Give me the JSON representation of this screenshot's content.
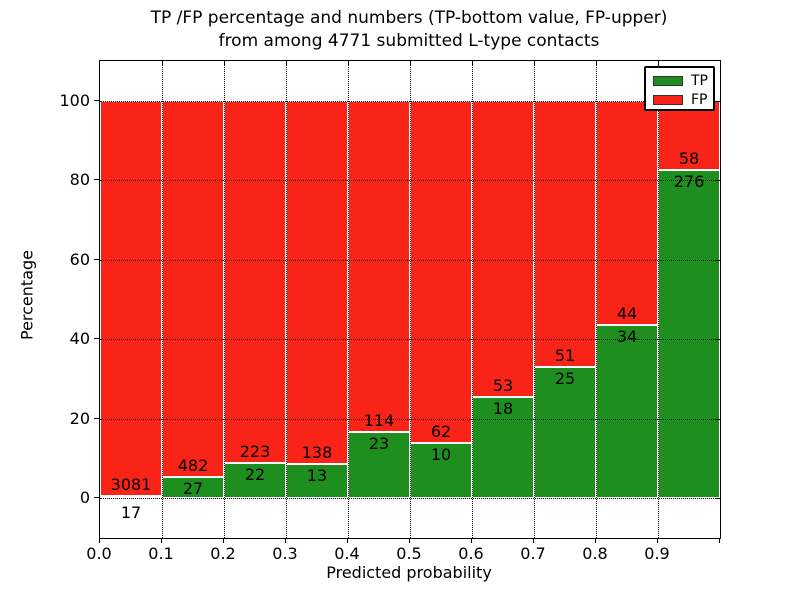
{
  "chart_data": {
    "type": "bar",
    "stacked": true,
    "normalized_to_percent": true,
    "title_lines": [
      "TP /FP percentage and numbers (TP-bottom value, FP-upper)",
      "from among 4771 submitted L-type contacts"
    ],
    "xlabel": "Predicted probability",
    "ylabel": "Percentage",
    "x_tick_labels": [
      "0.0",
      "0.1",
      "0.2",
      "0.3",
      "0.4",
      "0.5",
      "0.6",
      "0.7",
      "0.8",
      "0.9"
    ],
    "y_tick_labels": [
      "0",
      "20",
      "40",
      "60",
      "80",
      "100"
    ],
    "y_ticks": [
      0,
      20,
      40,
      60,
      80,
      100
    ],
    "xlim": [
      0.0,
      1.0
    ],
    "ylim": [
      -10,
      110
    ],
    "grid": "dotted, both axes",
    "legend": {
      "position": "upper-right",
      "items": [
        {
          "label": "TP",
          "color": "#1e8f1e"
        },
        {
          "label": "FP",
          "color": "#f92318"
        }
      ]
    },
    "bins": [
      {
        "x_range": [
          0.0,
          0.1
        ],
        "tp": 17,
        "fp": 3081
      },
      {
        "x_range": [
          0.1,
          0.2
        ],
        "tp": 27,
        "fp": 482
      },
      {
        "x_range": [
          0.2,
          0.3
        ],
        "tp": 22,
        "fp": 223
      },
      {
        "x_range": [
          0.3,
          0.4
        ],
        "tp": 13,
        "fp": 138
      },
      {
        "x_range": [
          0.4,
          0.5
        ],
        "tp": 23,
        "fp": 114
      },
      {
        "x_range": [
          0.5,
          0.6
        ],
        "tp": 10,
        "fp": 62
      },
      {
        "x_range": [
          0.6,
          0.7
        ],
        "tp": 18,
        "fp": 53
      },
      {
        "x_range": [
          0.7,
          0.8
        ],
        "tp": 25,
        "fp": 51
      },
      {
        "x_range": [
          0.8,
          0.9
        ],
        "tp": 34,
        "fp": 44
      },
      {
        "x_range": [
          0.9,
          1.0
        ],
        "tp": 276,
        "fp": 58
      }
    ],
    "colors": {
      "tp": "#1e8f1e",
      "fp": "#f92318",
      "grid": "#000000",
      "axis": "#000000",
      "background": "#ffffff"
    }
  }
}
